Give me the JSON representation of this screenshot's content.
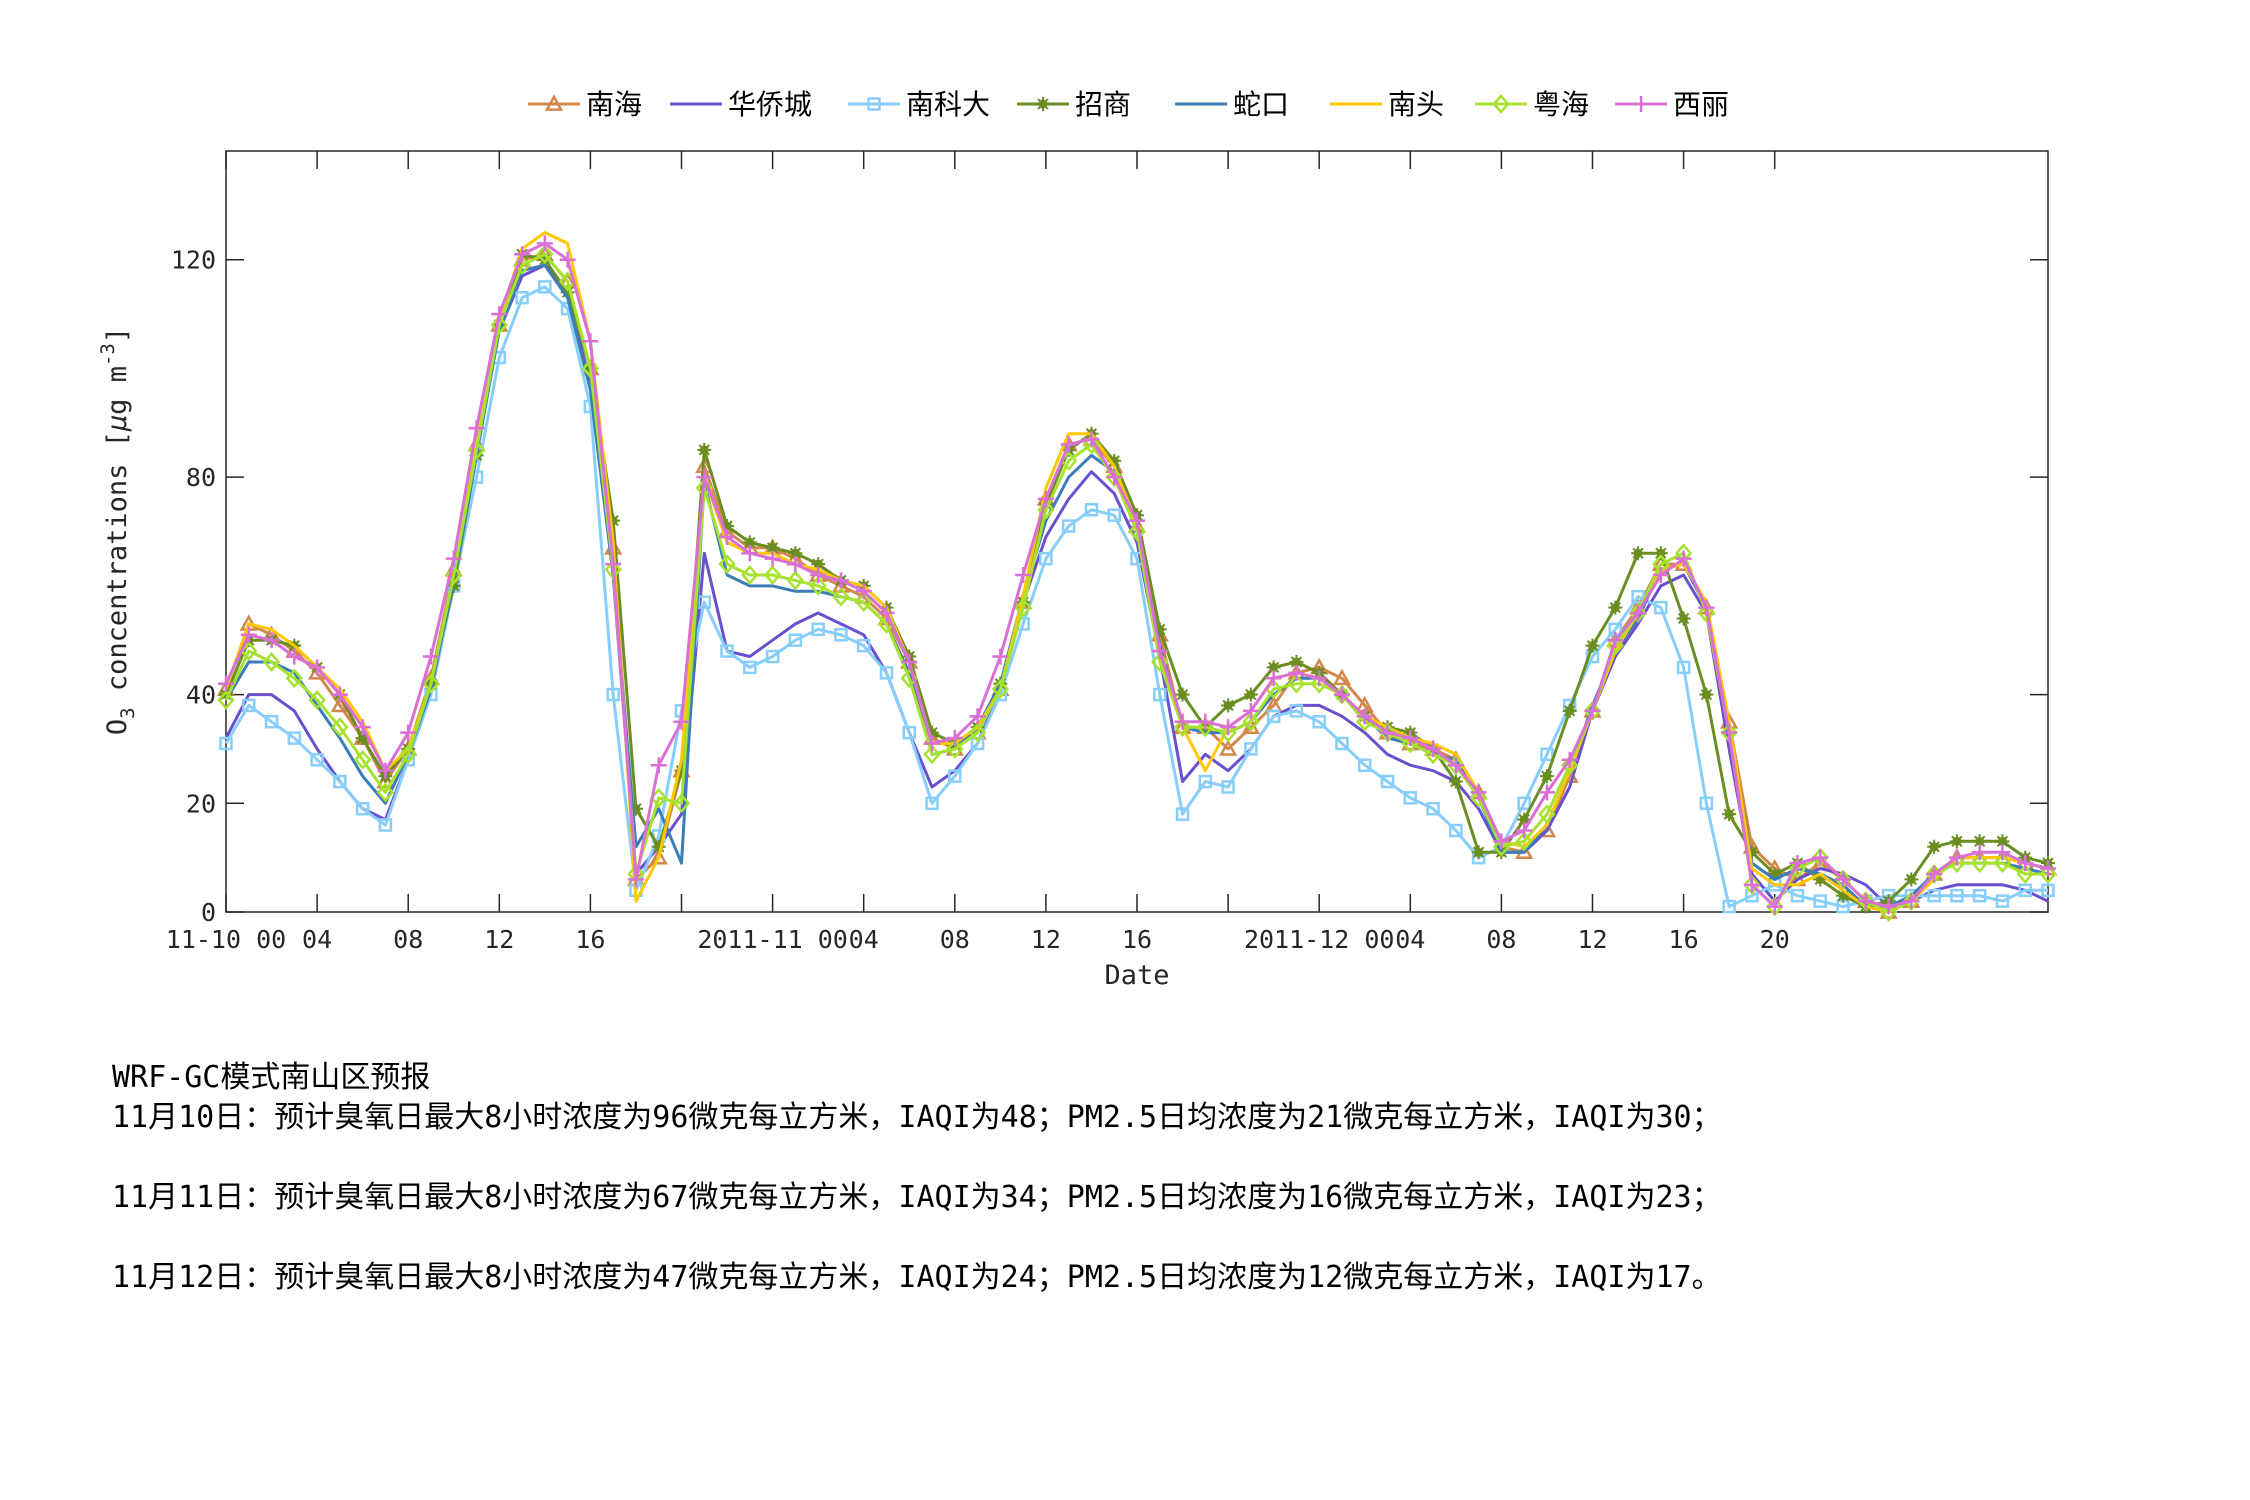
{
  "chart_data": {
    "type": "line",
    "title": "",
    "xlabel": "Date",
    "ylabel": "O3 concentrations [μg m^-3]",
    "ylabel_parts": {
      "main": "O",
      "sub": "3",
      "rest": " concentrations [",
      "mu": "μ",
      "unit": "g m",
      "sup": "-3",
      "close": "]"
    },
    "ylim": [
      0,
      140
    ],
    "xlim": [
      0,
      80
    ],
    "x_unit": "hour index from 11-10 00:00",
    "yticks": [
      0,
      20,
      40,
      80,
      120
    ],
    "xticks": [
      {
        "x": 0,
        "label": "11-10 00"
      },
      {
        "x": 4,
        "label": "04"
      },
      {
        "x": 8,
        "label": "08"
      },
      {
        "x": 12,
        "label": "12"
      },
      {
        "x": 16,
        "label": "16"
      },
      {
        "x": 20,
        "label": ""
      },
      {
        "x": 24,
        "label": "2011-11 00"
      },
      {
        "x": 28,
        "label": "04"
      },
      {
        "x": 32,
        "label": "08"
      },
      {
        "x": 36,
        "label": "12"
      },
      {
        "x": 40,
        "label": "16"
      },
      {
        "x": 44,
        "label": ""
      },
      {
        "x": 48,
        "label": "2011-12 00"
      },
      {
        "x": 52,
        "label": "04"
      },
      {
        "x": 56,
        "label": "08"
      },
      {
        "x": 60,
        "label": "12"
      },
      {
        "x": 64,
        "label": "16"
      },
      {
        "x": 68,
        "label": "20"
      }
    ],
    "grid": false,
    "legend_position": "top-horizontal",
    "series": [
      {
        "name": "南海",
        "color": "#D2884A",
        "marker": "triangle",
        "values": [
          41,
          53,
          51,
          48,
          44,
          38,
          32,
          24,
          30,
          43,
          63,
          86,
          108,
          120,
          121,
          116,
          100,
          67,
          6,
          10,
          26,
          82,
          70,
          67,
          67,
          65,
          62,
          60,
          58,
          54,
          46,
          32,
          30,
          33,
          41,
          57,
          76,
          86,
          87,
          82,
          71,
          51,
          34,
          34,
          30,
          34,
          38,
          44,
          45,
          43,
          38,
          33,
          31,
          30,
          28,
          22,
          12,
          11,
          15,
          25,
          37,
          50,
          56,
          64,
          64,
          56,
          35,
          12,
          8,
          6,
          9,
          6,
          2,
          0,
          2,
          7,
          10,
          10,
          10,
          9,
          8
        ]
      },
      {
        "name": "华侨城",
        "color": "#6A4FCF",
        "marker": "none",
        "values": [
          32,
          40,
          40,
          37,
          30,
          24,
          19,
          17,
          28,
          41,
          61,
          85,
          107,
          117,
          119,
          114,
          97,
          62,
          7,
          12,
          18,
          66,
          48,
          47,
          50,
          53,
          55,
          53,
          51,
          44,
          33,
          23,
          26,
          31,
          41,
          57,
          69,
          76,
          81,
          77,
          68,
          47,
          24,
          29,
          26,
          30,
          36,
          38,
          38,
          36,
          33,
          29,
          27,
          26,
          24,
          19,
          11,
          11,
          15,
          23,
          37,
          47,
          53,
          60,
          62,
          55,
          30,
          7,
          2,
          6,
          8,
          7,
          5,
          1,
          2,
          4,
          5,
          5,
          5,
          4,
          2
        ]
      },
      {
        "name": "南科大",
        "color": "#87CEFA",
        "marker": "square",
        "values": [
          31,
          38,
          35,
          32,
          28,
          24,
          19,
          16,
          28,
          40,
          60,
          80,
          102,
          113,
          115,
          111,
          93,
          40,
          4,
          14,
          37,
          57,
          48,
          45,
          47,
          50,
          52,
          51,
          49,
          44,
          33,
          20,
          25,
          31,
          40,
          53,
          65,
          71,
          74,
          73,
          65,
          40,
          18,
          24,
          23,
          30,
          36,
          37,
          35,
          31,
          27,
          24,
          21,
          19,
          15,
          10,
          12,
          20,
          29,
          38,
          47,
          52,
          58,
          56,
          45,
          20,
          1,
          3,
          5,
          3,
          2,
          1,
          2,
          3,
          3,
          3,
          3,
          3,
          2,
          4,
          4
        ]
      },
      {
        "name": "招商",
        "color": "#6B8E23",
        "marker": "star",
        "values": [
          40,
          50,
          50,
          49,
          45,
          40,
          32,
          25,
          30,
          42,
          60,
          84,
          108,
          121,
          120,
          114,
          100,
          72,
          19,
          12,
          26,
          85,
          71,
          68,
          67,
          66,
          64,
          61,
          60,
          56,
          47,
          33,
          31,
          34,
          42,
          57,
          75,
          85,
          88,
          83,
          73,
          52,
          40,
          34,
          38,
          40,
          45,
          46,
          44,
          40,
          36,
          34,
          33,
          30,
          24,
          11,
          11,
          17,
          25,
          37,
          49,
          56,
          66,
          66,
          54,
          40,
          18,
          11,
          7,
          9,
          6,
          3,
          1,
          2,
          6,
          12,
          13,
          13,
          13,
          10,
          9
        ]
      },
      {
        "name": "蛇口",
        "color": "#3A7DB8",
        "marker": "none",
        "values": [
          39,
          46,
          46,
          44,
          38,
          32,
          25,
          20,
          29,
          41,
          61,
          84,
          107,
          118,
          119,
          113,
          96,
          62,
          12,
          19,
          9,
          79,
          62,
          60,
          60,
          59,
          59,
          58,
          57,
          53,
          44,
          29,
          30,
          34,
          42,
          58,
          72,
          80,
          84,
          81,
          70,
          49,
          34,
          33,
          33,
          35,
          40,
          43,
          43,
          40,
          36,
          32,
          31,
          29,
          28,
          21,
          11,
          11,
          16,
          26,
          38,
          48,
          54,
          63,
          64,
          56,
          34,
          9,
          6,
          8,
          7,
          5,
          1,
          1,
          3,
          7,
          9,
          9,
          9,
          8,
          7
        ]
      },
      {
        "name": "南头",
        "color": "#FFC800",
        "marker": "none",
        "values": [
          41,
          53,
          52,
          49,
          45,
          41,
          35,
          26,
          30,
          42,
          62,
          86,
          109,
          122,
          125,
          123,
          105,
          68,
          2,
          10,
          28,
          80,
          68,
          66,
          66,
          64,
          63,
          61,
          60,
          56,
          46,
          31,
          31,
          34,
          41,
          58,
          78,
          88,
          88,
          82,
          71,
          48,
          34,
          26,
          34,
          37,
          43,
          44,
          43,
          40,
          36,
          34,
          32,
          31,
          29,
          22,
          13,
          12,
          16,
          26,
          37,
          48,
          55,
          63,
          64,
          57,
          35,
          8,
          5,
          5,
          7,
          4,
          1,
          0,
          2,
          6,
          10,
          10,
          10,
          9,
          8
        ]
      },
      {
        "name": "粤海",
        "color": "#A6E22E",
        "marker": "diamond",
        "values": [
          39,
          48,
          46,
          43,
          39,
          34,
          28,
          22,
          29,
          42,
          62,
          85,
          108,
          119,
          121,
          116,
          100,
          63,
          7,
          21,
          20,
          78,
          64,
          62,
          62,
          61,
          60,
          58,
          57,
          53,
          43,
          29,
          30,
          33,
          41,
          56,
          74,
          83,
          86,
          80,
          70,
          46,
          34,
          34,
          33,
          35,
          41,
          42,
          42,
          40,
          35,
          33,
          31,
          29,
          27,
          21,
          12,
          13,
          18,
          27,
          37,
          49,
          55,
          64,
          66,
          55,
          33,
          5,
          1,
          8,
          10,
          6,
          2,
          0,
          2,
          7,
          9,
          9,
          9,
          7,
          7
        ]
      },
      {
        "name": "西丽",
        "color": "#DA70D6",
        "marker": "plus",
        "values": [
          42,
          51,
          50,
          47,
          45,
          40,
          34,
          26,
          33,
          47,
          65,
          89,
          110,
          121,
          123,
          120,
          105,
          64,
          6,
          27,
          35,
          80,
          69,
          66,
          65,
          64,
          62,
          61,
          59,
          55,
          46,
          31,
          32,
          36,
          47,
          62,
          76,
          86,
          87,
          80,
          72,
          48,
          35,
          35,
          34,
          37,
          43,
          44,
          43,
          40,
          36,
          33,
          32,
          30,
          27,
          22,
          13,
          15,
          22,
          28,
          37,
          50,
          55,
          62,
          65,
          56,
          33,
          5,
          1,
          9,
          10,
          6,
          2,
          1,
          2,
          7,
          10,
          11,
          11,
          9,
          8
        ]
      }
    ]
  },
  "report": {
    "title": "WRF-GC模式南山区预报",
    "lines": [
      "11月10日：预计臭氧日最大8小时浓度为96微克每立方米，IAQI为48；PM2.5日均浓度为21微克每立方米，IAQI为30；",
      "11月11日：预计臭氧日最大8小时浓度为67微克每立方米，IAQI为34；PM2.5日均浓度为16微克每立方米，IAQI为23；",
      "11月12日：预计臭氧日最大8小时浓度为47微克每立方米，IAQI为24；PM2.5日均浓度为12微克每立方米，IAQI为17。"
    ]
  }
}
